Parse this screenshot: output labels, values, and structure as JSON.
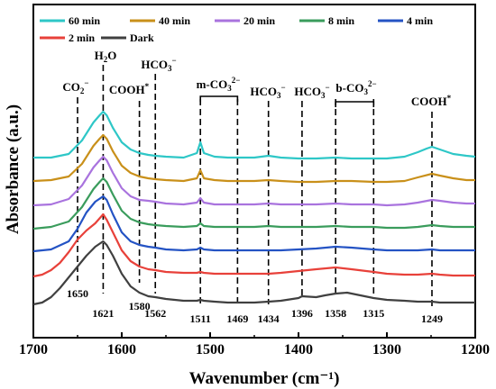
{
  "chart_data": {
    "type": "line",
    "title": "",
    "xlabel": "Wavenumber (cm⁻¹)",
    "ylabel": "Absorbance (a.u.)",
    "xlim": [
      1700,
      1200
    ],
    "x_reversed": true,
    "x_ticks": [
      "1700",
      "1600",
      "1500",
      "1400",
      "1300",
      "1200"
    ],
    "y_tick_labels": false,
    "legend_position": "top-left, inside plot",
    "series": [
      {
        "name": "60 min",
        "color": "#2ec7c7",
        "offset": 8,
        "points": [
          [
            1700,
            0.25
          ],
          [
            1680,
            0.25
          ],
          [
            1660,
            0.45
          ],
          [
            1645,
            1.2
          ],
          [
            1632,
            2.2
          ],
          [
            1625,
            2.6
          ],
          [
            1621,
            2.8
          ],
          [
            1617,
            2.6
          ],
          [
            1610,
            1.9
          ],
          [
            1600,
            1.1
          ],
          [
            1590,
            0.7
          ],
          [
            1580,
            0.5
          ],
          [
            1570,
            0.4
          ],
          [
            1562,
            0.35
          ],
          [
            1550,
            0.3
          ],
          [
            1530,
            0.25
          ],
          [
            1515,
            0.5
          ],
          [
            1511,
            1.1
          ],
          [
            1507,
            0.5
          ],
          [
            1495,
            0.3
          ],
          [
            1480,
            0.25
          ],
          [
            1469,
            0.25
          ],
          [
            1450,
            0.25
          ],
          [
            1434,
            0.35
          ],
          [
            1420,
            0.25
          ],
          [
            1400,
            0.2
          ],
          [
            1380,
            0.2
          ],
          [
            1358,
            0.25
          ],
          [
            1340,
            0.2
          ],
          [
            1315,
            0.2
          ],
          [
            1300,
            0.2
          ],
          [
            1280,
            0.3
          ],
          [
            1265,
            0.55
          ],
          [
            1255,
            0.75
          ],
          [
            1249,
            0.85
          ],
          [
            1240,
            0.7
          ],
          [
            1225,
            0.45
          ],
          [
            1210,
            0.35
          ],
          [
            1200,
            0.3
          ]
        ]
      },
      {
        "name": "40 min",
        "color": "#c9901a",
        "offset": 6.7,
        "points": [
          [
            1700,
            0.25
          ],
          [
            1680,
            0.3
          ],
          [
            1660,
            0.5
          ],
          [
            1645,
            1.2
          ],
          [
            1632,
            2.2
          ],
          [
            1625,
            2.6
          ],
          [
            1621,
            2.8
          ],
          [
            1617,
            2.6
          ],
          [
            1610,
            1.9
          ],
          [
            1600,
            1.1
          ],
          [
            1590,
            0.7
          ],
          [
            1580,
            0.5
          ],
          [
            1570,
            0.4
          ],
          [
            1562,
            0.35
          ],
          [
            1550,
            0.3
          ],
          [
            1530,
            0.25
          ],
          [
            1515,
            0.4
          ],
          [
            1511,
            0.85
          ],
          [
            1507,
            0.4
          ],
          [
            1495,
            0.3
          ],
          [
            1480,
            0.25
          ],
          [
            1469,
            0.25
          ],
          [
            1450,
            0.25
          ],
          [
            1434,
            0.3
          ],
          [
            1420,
            0.25
          ],
          [
            1400,
            0.2
          ],
          [
            1380,
            0.2
          ],
          [
            1358,
            0.25
          ],
          [
            1340,
            0.25
          ],
          [
            1315,
            0.2
          ],
          [
            1300,
            0.2
          ],
          [
            1280,
            0.25
          ],
          [
            1265,
            0.45
          ],
          [
            1249,
            0.65
          ],
          [
            1240,
            0.55
          ],
          [
            1225,
            0.4
          ],
          [
            1210,
            0.3
          ],
          [
            1200,
            0.3
          ]
        ]
      },
      {
        "name": "20 min",
        "color": "#a973de",
        "offset": 5.4,
        "points": [
          [
            1700,
            0.2
          ],
          [
            1680,
            0.25
          ],
          [
            1660,
            0.55
          ],
          [
            1645,
            1.3
          ],
          [
            1632,
            2.3
          ],
          [
            1625,
            2.7
          ],
          [
            1621,
            2.9
          ],
          [
            1617,
            2.7
          ],
          [
            1610,
            2.0
          ],
          [
            1600,
            1.15
          ],
          [
            1590,
            0.7
          ],
          [
            1580,
            0.5
          ],
          [
            1570,
            0.45
          ],
          [
            1562,
            0.4
          ],
          [
            1550,
            0.3
          ],
          [
            1530,
            0.25
          ],
          [
            1515,
            0.35
          ],
          [
            1511,
            0.6
          ],
          [
            1507,
            0.35
          ],
          [
            1495,
            0.25
          ],
          [
            1480,
            0.25
          ],
          [
            1469,
            0.25
          ],
          [
            1450,
            0.25
          ],
          [
            1434,
            0.3
          ],
          [
            1420,
            0.25
          ],
          [
            1400,
            0.25
          ],
          [
            1380,
            0.25
          ],
          [
            1358,
            0.3
          ],
          [
            1340,
            0.25
          ],
          [
            1315,
            0.25
          ],
          [
            1300,
            0.2
          ],
          [
            1280,
            0.25
          ],
          [
            1265,
            0.35
          ],
          [
            1249,
            0.5
          ],
          [
            1240,
            0.45
          ],
          [
            1225,
            0.35
          ],
          [
            1210,
            0.3
          ],
          [
            1200,
            0.3
          ]
        ]
      },
      {
        "name": "8 min",
        "color": "#3a9c5c",
        "offset": 4.1,
        "points": [
          [
            1700,
            0.2
          ],
          [
            1680,
            0.3
          ],
          [
            1660,
            0.6
          ],
          [
            1645,
            1.4
          ],
          [
            1632,
            2.4
          ],
          [
            1625,
            2.8
          ],
          [
            1621,
            3.0
          ],
          [
            1617,
            2.8
          ],
          [
            1610,
            2.1
          ],
          [
            1600,
            1.2
          ],
          [
            1590,
            0.75
          ],
          [
            1580,
            0.55
          ],
          [
            1570,
            0.45
          ],
          [
            1562,
            0.4
          ],
          [
            1550,
            0.35
          ],
          [
            1530,
            0.3
          ],
          [
            1515,
            0.35
          ],
          [
            1511,
            0.5
          ],
          [
            1507,
            0.35
          ],
          [
            1495,
            0.3
          ],
          [
            1480,
            0.3
          ],
          [
            1469,
            0.3
          ],
          [
            1450,
            0.3
          ],
          [
            1434,
            0.35
          ],
          [
            1420,
            0.3
          ],
          [
            1400,
            0.3
          ],
          [
            1380,
            0.3
          ],
          [
            1358,
            0.35
          ],
          [
            1340,
            0.3
          ],
          [
            1315,
            0.3
          ],
          [
            1300,
            0.25
          ],
          [
            1280,
            0.25
          ],
          [
            1265,
            0.3
          ],
          [
            1249,
            0.4
          ],
          [
            1240,
            0.35
          ],
          [
            1225,
            0.3
          ],
          [
            1210,
            0.3
          ],
          [
            1200,
            0.3
          ]
        ]
      },
      {
        "name": "4 min",
        "color": "#2453c4",
        "offset": 2.8,
        "points": [
          [
            1700,
            0.25
          ],
          [
            1680,
            0.35
          ],
          [
            1660,
            0.8
          ],
          [
            1650,
            1.5
          ],
          [
            1640,
            2.4
          ],
          [
            1630,
            3.0
          ],
          [
            1621,
            3.3
          ],
          [
            1617,
            3.1
          ],
          [
            1610,
            2.3
          ],
          [
            1600,
            1.3
          ],
          [
            1590,
            0.8
          ],
          [
            1580,
            0.6
          ],
          [
            1570,
            0.5
          ],
          [
            1562,
            0.45
          ],
          [
            1550,
            0.35
          ],
          [
            1530,
            0.3
          ],
          [
            1515,
            0.35
          ],
          [
            1511,
            0.45
          ],
          [
            1507,
            0.35
          ],
          [
            1495,
            0.3
          ],
          [
            1480,
            0.3
          ],
          [
            1469,
            0.3
          ],
          [
            1450,
            0.3
          ],
          [
            1434,
            0.3
          ],
          [
            1420,
            0.3
          ],
          [
            1400,
            0.35
          ],
          [
            1380,
            0.4
          ],
          [
            1358,
            0.5
          ],
          [
            1340,
            0.45
          ],
          [
            1315,
            0.35
          ],
          [
            1300,
            0.3
          ],
          [
            1280,
            0.3
          ],
          [
            1265,
            0.3
          ],
          [
            1249,
            0.35
          ],
          [
            1240,
            0.3
          ],
          [
            1225,
            0.3
          ],
          [
            1210,
            0.3
          ],
          [
            1200,
            0.3
          ]
        ]
      },
      {
        "name": "2 min",
        "color": "#e8413a",
        "offset": 1.5,
        "points": [
          [
            1700,
            0.15
          ],
          [
            1690,
            0.25
          ],
          [
            1680,
            0.5
          ],
          [
            1670,
            0.9
          ],
          [
            1660,
            1.5
          ],
          [
            1650,
            2.2
          ],
          [
            1640,
            2.7
          ],
          [
            1630,
            3.1
          ],
          [
            1621,
            3.6
          ],
          [
            1617,
            3.3
          ],
          [
            1610,
            2.6
          ],
          [
            1600,
            1.6
          ],
          [
            1590,
            1.0
          ],
          [
            1580,
            0.7
          ],
          [
            1570,
            0.55
          ],
          [
            1562,
            0.5
          ],
          [
            1550,
            0.4
          ],
          [
            1530,
            0.35
          ],
          [
            1515,
            0.35
          ],
          [
            1511,
            0.4
          ],
          [
            1507,
            0.35
          ],
          [
            1495,
            0.3
          ],
          [
            1480,
            0.3
          ],
          [
            1469,
            0.3
          ],
          [
            1450,
            0.3
          ],
          [
            1434,
            0.3
          ],
          [
            1420,
            0.35
          ],
          [
            1400,
            0.45
          ],
          [
            1380,
            0.55
          ],
          [
            1358,
            0.65
          ],
          [
            1340,
            0.55
          ],
          [
            1315,
            0.4
          ],
          [
            1300,
            0.3
          ],
          [
            1280,
            0.25
          ],
          [
            1265,
            0.25
          ],
          [
            1249,
            0.3
          ],
          [
            1240,
            0.25
          ],
          [
            1225,
            0.2
          ],
          [
            1210,
            0.2
          ],
          [
            1200,
            0.2
          ]
        ]
      },
      {
        "name": "Dark",
        "color": "#404040",
        "offset": 0,
        "points": [
          [
            1700,
            0.1
          ],
          [
            1690,
            0.2
          ],
          [
            1680,
            0.5
          ],
          [
            1670,
            1.0
          ],
          [
            1660,
            1.6
          ],
          [
            1650,
            2.2
          ],
          [
            1640,
            2.8
          ],
          [
            1630,
            3.3
          ],
          [
            1621,
            3.6
          ],
          [
            1617,
            3.4
          ],
          [
            1610,
            2.8
          ],
          [
            1600,
            1.8
          ],
          [
            1590,
            1.1
          ],
          [
            1580,
            0.75
          ],
          [
            1570,
            0.55
          ],
          [
            1562,
            0.5
          ],
          [
            1550,
            0.4
          ],
          [
            1530,
            0.3
          ],
          [
            1515,
            0.3
          ],
          [
            1511,
            0.35
          ],
          [
            1507,
            0.3
          ],
          [
            1495,
            0.25
          ],
          [
            1480,
            0.2
          ],
          [
            1469,
            0.2
          ],
          [
            1450,
            0.2
          ],
          [
            1434,
            0.25
          ],
          [
            1420,
            0.3
          ],
          [
            1400,
            0.45
          ],
          [
            1396,
            0.55
          ],
          [
            1380,
            0.5
          ],
          [
            1370,
            0.6
          ],
          [
            1358,
            0.7
          ],
          [
            1345,
            0.75
          ],
          [
            1330,
            0.6
          ],
          [
            1315,
            0.45
          ],
          [
            1300,
            0.35
          ],
          [
            1280,
            0.3
          ],
          [
            1265,
            0.25
          ],
          [
            1249,
            0.25
          ],
          [
            1240,
            0.2
          ],
          [
            1225,
            0.2
          ],
          [
            1210,
            0.2
          ],
          [
            1200,
            0.2
          ]
        ]
      }
    ],
    "peak_lines": [
      1650,
      1621,
      1580,
      1562,
      1511,
      1469,
      1434,
      1396,
      1358,
      1315,
      1249
    ],
    "peak_labels": [
      "1650",
      "1621",
      "1580",
      "1562",
      "1511",
      "1469",
      "1434",
      "1396",
      "1358",
      "1315",
      "1249"
    ],
    "band_labels": [
      {
        "key": "co2m",
        "text": "CO2⁻",
        "x": 1650
      },
      {
        "key": "h2o",
        "text": "H2O",
        "x": 1621
      },
      {
        "key": "cooh1",
        "text": "COOH*",
        "x": 1580
      },
      {
        "key": "hco3a",
        "text": "HCO3⁻",
        "x": 1562
      },
      {
        "key": "mco3",
        "text": "m-CO3²⁻",
        "x": 1490
      },
      {
        "key": "hco3b",
        "text": "HCO3⁻",
        "x": 1434
      },
      {
        "key": "hco3c",
        "text": "HCO3⁻",
        "x": 1396
      },
      {
        "key": "bco3",
        "text": "b-CO3²⁻",
        "x": 1336
      },
      {
        "key": "cooh2",
        "text": "COOH*",
        "x": 1249
      }
    ]
  }
}
